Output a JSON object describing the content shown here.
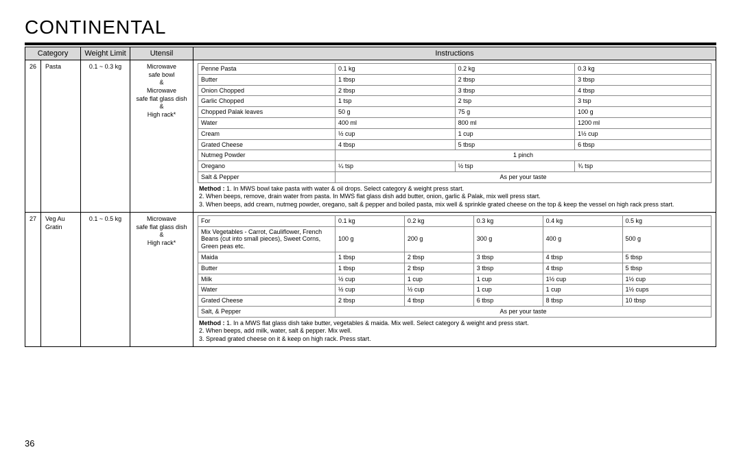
{
  "title": "CONTINENTAL",
  "page_number": "36",
  "headers": {
    "category": "Category",
    "weight": "Weight Limit",
    "utensil": "Utensil",
    "instructions": "Instructions"
  },
  "row26": {
    "num": "26",
    "category": "Pasta",
    "weight": "0.1 ~ 0.3 kg",
    "utensil": "Microwave\nsafe bowl\n&\nMicrowave\nsafe flat glass dish\n&\nHigh rack*",
    "cols": [
      "0.1 kg",
      "0.2 kg",
      "0.3 kg"
    ],
    "rows": [
      {
        "label": "Penne Pasta",
        "v": [
          "0.1 kg",
          "0.2 kg",
          "0.3 kg"
        ]
      },
      {
        "label": "Butter",
        "v": [
          "1 tbsp",
          "2 tbsp",
          "3 tbsp"
        ]
      },
      {
        "label": "Onion Chopped",
        "v": [
          "2 tbsp",
          "3 tbsp",
          "4 tbsp"
        ]
      },
      {
        "label": "Garlic Chopped",
        "v": [
          "1 tsp",
          "2 tsp",
          "3 tsp"
        ]
      },
      {
        "label": "Chopped Palak leaves",
        "v": [
          "50 g",
          "75 g",
          "100 g"
        ]
      },
      {
        "label": "Water",
        "v": [
          "400 ml",
          "800 ml",
          "1200 ml"
        ]
      },
      {
        "label": "Cream",
        "v": [
          "½ cup",
          "1 cup",
          "1½ cup"
        ]
      },
      {
        "label": "Grated Cheese",
        "v": [
          "4 tbsp",
          "5 tbsp",
          "6 tbsp"
        ]
      },
      {
        "label": "Nutmeg Powder",
        "span": "1 pinch"
      },
      {
        "label": "Oregano",
        "v": [
          "¼ tsp",
          "½ tsp",
          "¾ tsp"
        ]
      },
      {
        "label": "Salt & Pepper",
        "span": "As per your taste"
      }
    ],
    "method_label": "Method :",
    "method": [
      "1. In MWS bowl take pasta with water & oil drops. Select category & weight press start.",
      "2. When beeps,  remove, drain water from pasta. In MWS flat glass dish add butter, onion, garlic & Palak, mix well press start.",
      "3. When beeps, add cream, nutmeg powder, oregano, salt & pepper and boiled pasta, mix well & sprinkle grated cheese on the top & keep the vessel on high rack press start."
    ]
  },
  "row27": {
    "num": "27",
    "category": "Veg Au Gratin",
    "weight": "0.1 ~ 0.5 kg",
    "utensil": "Microwave\nsafe flat glass dish\n&\nHigh rack*",
    "for_label": "For",
    "cols": [
      "0.1 kg",
      "0.2 kg",
      "0.3 kg",
      "0.4 kg",
      "0.5 kg"
    ],
    "mixveg_label": "Mix Vegetables - Carrot, Cauliflower, French Beans (cut into small pieces), Sweet Corns, Green peas etc.",
    "mixveg_v": [
      "100 g",
      "200 g",
      "300 g",
      "400 g",
      "500 g"
    ],
    "rows": [
      {
        "label": "Maida",
        "v": [
          "1 tbsp",
          "2 tbsp",
          "3 tbsp",
          "4 tbsp",
          "5 tbsp"
        ]
      },
      {
        "label": "Butter",
        "v": [
          "1 tbsp",
          "2 tbsp",
          "3 tbsp",
          "4 tbsp",
          "5 tbsp"
        ]
      },
      {
        "label": "Milk",
        "v": [
          "½ cup",
          "1 cup",
          "1 cup",
          "1½ cup",
          "1½ cup"
        ]
      },
      {
        "label": "Water",
        "v": [
          "½ cup",
          "½ cup",
          "1 cup",
          "1 cup",
          "1½ cups"
        ]
      },
      {
        "label": "Grated Cheese",
        "v": [
          "2 tbsp",
          "4 tbsp",
          "6 tbsp",
          "8 tbsp",
          "10 tbsp"
        ]
      },
      {
        "label": "Salt, & Pepper",
        "span": "As per your taste"
      }
    ],
    "method_label": "Method :",
    "method": [
      "1. In a MWS flat glass dish take butter, vegetables & maida. Mix well. Select category & weight and press start.",
      "2. When beeps, add milk, water, salt & pepper. Mix well.",
      "3. Spread grated cheese on it & keep on high rack. Press start."
    ]
  }
}
